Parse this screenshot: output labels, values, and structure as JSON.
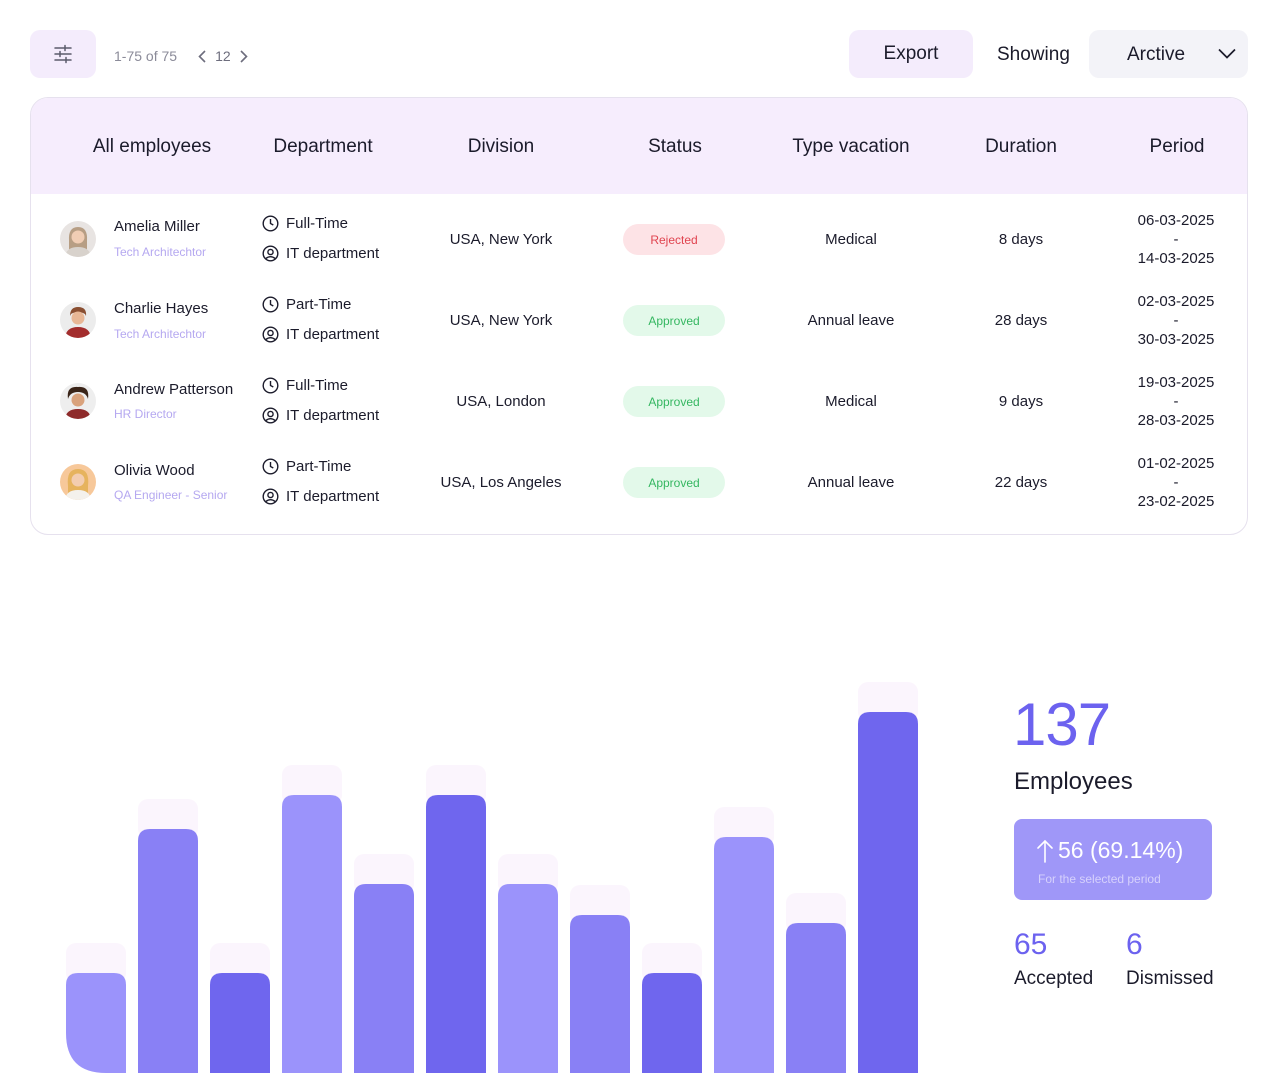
{
  "toolbar": {
    "filter_icon": "sliders-icon",
    "range_text": "1-75 of 75",
    "page": "12",
    "export_label": "Export",
    "showing_label": "Showing",
    "showing_value": "Arctive"
  },
  "table": {
    "headers": [
      "All employees",
      "Department",
      "Division",
      "Status",
      "Type vacation",
      "Duration",
      "Period"
    ],
    "rows": [
      {
        "name": "Amelia Miller",
        "role": "Tech Architechtor",
        "employment": "Full-Time",
        "department": "IT department",
        "division": "USA, New York",
        "status": "Rejected",
        "vacation": "Medical",
        "duration": "8 days",
        "period_start": "06-03-2025",
        "period_sep": "-",
        "period_end": "14-03-2025"
      },
      {
        "name": "Charlie Hayes",
        "role": "Tech Architechtor",
        "employment": "Part-Time",
        "department": "IT department",
        "division": "USA, New York",
        "status": "Approved",
        "vacation": "Annual leave",
        "duration": "28 days",
        "period_start": "02-03-2025",
        "period_sep": "-",
        "period_end": "30-03-2025"
      },
      {
        "name": "Andrew Patterson",
        "role": "HR Director",
        "employment": "Full-Time",
        "department": "IT department",
        "division": "USA, London",
        "status": "Approved",
        "vacation": "Medical",
        "duration": "9 days",
        "period_start": "19-03-2025",
        "period_sep": "-",
        "period_end": "28-03-2025"
      },
      {
        "name": "Olivia Wood",
        "role": "QA Engineer - Senior",
        "employment": "Part-Time",
        "department": "IT department",
        "division": "USA, Los Angeles",
        "status": "Approved",
        "vacation": "Annual leave",
        "duration": "22 days",
        "period_start": "01-02-2025",
        "period_sep": "-",
        "period_end": "23-02-2025"
      }
    ]
  },
  "colors": {
    "accent": "#6c62ef",
    "header_bg": "#f6edfd",
    "rejected": "#e0434f",
    "approved": "#35b761",
    "bar_dark": "#6f66ee",
    "bar_mid": "#8980f5",
    "bar_light": "#9b93fb"
  },
  "chart_data": {
    "type": "bar",
    "values": [
      100,
      244,
      100,
      278,
      189,
      278,
      189,
      158,
      100,
      236,
      150,
      361
    ],
    "ylim": [
      0,
      361
    ],
    "shades": [
      "light",
      "mid",
      "dark",
      "light",
      "mid",
      "dark",
      "light",
      "mid",
      "dark",
      "light",
      "mid",
      "dark"
    ],
    "grid": false,
    "legend": "none"
  },
  "stats": {
    "total": "137",
    "total_label": "Employees",
    "growth_value": "56 (69.14%)",
    "growth_caption": "For the selected period",
    "accepted_value": "65",
    "accepted_label": "Accepted",
    "dismissed_value": "6",
    "dismissed_label": "Dismissed"
  }
}
